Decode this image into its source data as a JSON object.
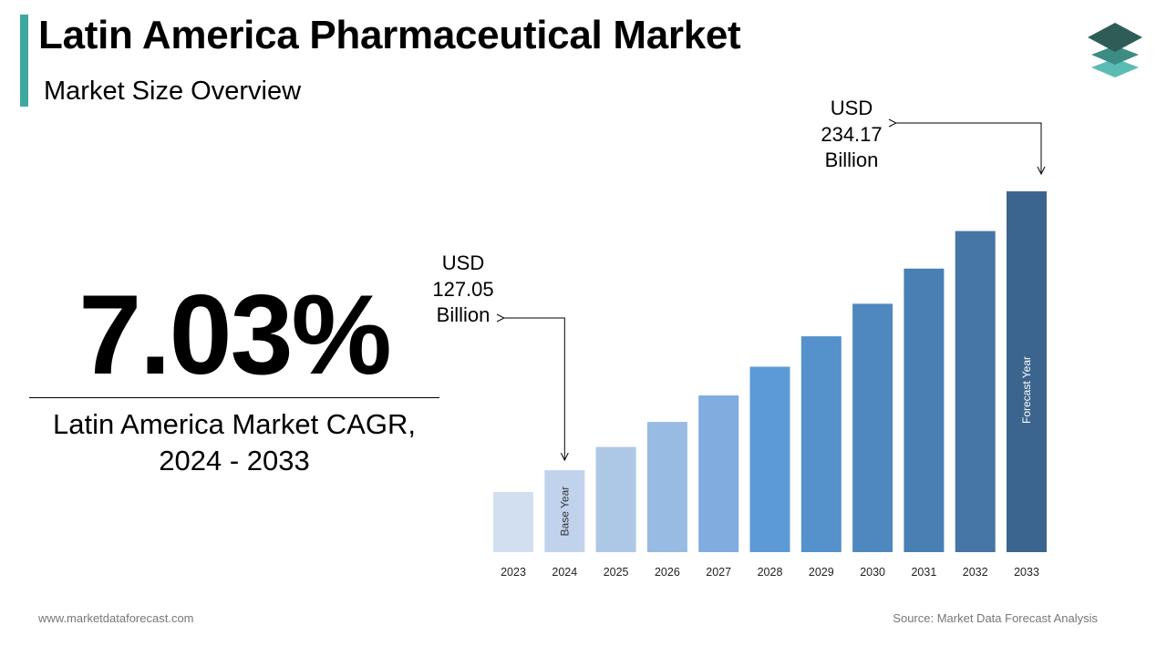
{
  "header": {
    "title": "Latin America Pharmaceutical Market",
    "subtitle": "Market Size Overview"
  },
  "cagr": {
    "value": "7.03%",
    "label_line1": "Latin America Market CAGR,",
    "label_line2": "2024 - 2033"
  },
  "callouts": {
    "start": {
      "line1": "USD",
      "line2": "127.05",
      "line3": "Billion"
    },
    "end": {
      "line1": "USD",
      "line2": "234.17",
      "line3": "Billion"
    }
  },
  "footer": {
    "website": "www.marketdataforecast.com",
    "source": "Source: Market Data Forecast Analysis"
  },
  "logo_icon": "stacked-layers-icon",
  "chart_data": {
    "type": "bar",
    "categories": [
      "2023",
      "2024",
      "2025",
      "2026",
      "2027",
      "2028",
      "2029",
      "2030",
      "2031",
      "2032",
      "2033"
    ],
    "values": [
      118.7,
      127.05,
      136.0,
      145.6,
      155.8,
      166.8,
      178.5,
      191.0,
      204.5,
      218.9,
      234.17
    ],
    "unit": "USD Billion",
    "bar_labels": {
      "2024": "Base Year",
      "2033": "Forecast Year"
    },
    "colors": [
      "#d2dff0",
      "#c1d3ec",
      "#adc8e6",
      "#97bbe2",
      "#81ace0",
      "#5c9ad6",
      "#5591cb",
      "#4f88be",
      "#4980b3",
      "#4576a6",
      "#3b658e"
    ],
    "label_colors": {
      "2024": "#333333",
      "2033": "#ffffff"
    },
    "grid": false,
    "legend": "none"
  }
}
